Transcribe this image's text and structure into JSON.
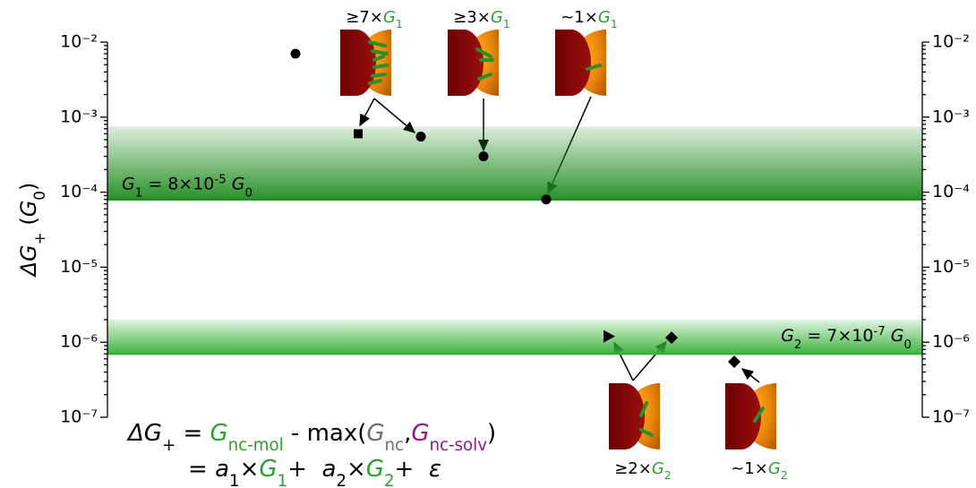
{
  "chart_data": {
    "type": "scatter",
    "ylabel": [
      {
        "text": "ΔG",
        "italic": true
      },
      {
        "text": "+",
        "shift": "sub"
      },
      {
        "text": " ("
      },
      {
        "text": "G",
        "italic": true
      },
      {
        "text": "0",
        "shift": "sub"
      },
      {
        "text": ")"
      }
    ],
    "log_y": true,
    "ylim": [
      1e-07,
      0.01
    ],
    "yticks": [
      {
        "value": 1e-07,
        "label": "10⁻⁷"
      },
      {
        "value": 1e-06,
        "label": "10⁻⁶"
      },
      {
        "value": 1e-05,
        "label": "10⁻⁵"
      },
      {
        "value": 0.0001,
        "label": "10⁻⁴"
      },
      {
        "value": 0.001,
        "label": "10⁻³"
      },
      {
        "value": 0.01,
        "label": "10⁻²"
      }
    ],
    "yticks_minor": [
      2e-07,
      3e-07,
      4e-07,
      5e-07,
      6e-07,
      7e-07,
      8e-07,
      9e-07,
      2e-06,
      3e-06,
      4e-06,
      5e-06,
      6e-06,
      7e-06,
      8e-06,
      9e-06,
      2e-05,
      3e-05,
      4e-05,
      5e-05,
      6e-05,
      7e-05,
      8e-05,
      9e-05,
      0.0002,
      0.0003,
      0.0004,
      0.0005,
      0.0006,
      0.0007,
      0.0008,
      0.0009,
      0.002,
      0.003,
      0.004,
      0.005,
      0.006,
      0.007,
      0.008,
      0.009
    ],
    "mirror_y_axis": true,
    "categories": [
      null,
      null,
      null,
      null,
      null,
      null,
      null,
      null
    ],
    "values": [
      0.007,
      0.0006,
      0.00055,
      0.0003,
      8e-05,
      1.2e-06,
      1.15e-06,
      5.5e-07
    ],
    "markers": [
      "circle",
      "square",
      "circle",
      "circle",
      "circle",
      "triangle-right",
      "diamond",
      "diamond"
    ],
    "color": "#000000",
    "bands": [
      {
        "lower": 8e-05,
        "upper": 0.00075,
        "color": "#1e8c1e",
        "label_side": "left",
        "label": [
          {
            "text": "G",
            "italic": true
          },
          {
            "text": "1",
            "shift": "sub"
          },
          {
            "text": " = 8×10"
          },
          {
            "text": "-5",
            "shift": "sup"
          },
          {
            "text": " "
          },
          {
            "text": "G",
            "italic": true
          },
          {
            "text": "0",
            "shift": "sub"
          }
        ]
      },
      {
        "lower": 7e-07,
        "upper": 2e-06,
        "color": "#35b035",
        "label_side": "right",
        "label": [
          {
            "text": "G",
            "italic": true
          },
          {
            "text": "2",
            "shift": "sub"
          },
          {
            "text": " = 7×10"
          },
          {
            "text": "-7",
            "shift": "sup"
          },
          {
            "text": " "
          },
          {
            "text": "G",
            "italic": true
          },
          {
            "text": "0",
            "shift": "sub"
          }
        ]
      }
    ],
    "annotations": [
      [
        {
          "text": "≥7×"
        },
        {
          "text": "G",
          "italic": true,
          "color": "#2ca02c"
        },
        {
          "text": "1",
          "shift": "sub",
          "color": "#2ca02c"
        }
      ],
      [
        {
          "text": "≥3×"
        },
        {
          "text": "G",
          "italic": true,
          "color": "#2ca02c"
        },
        {
          "text": "1",
          "shift": "sub",
          "color": "#2ca02c"
        }
      ],
      [
        {
          "text": "~1×"
        },
        {
          "text": "G",
          "italic": true,
          "color": "#2ca02c"
        },
        {
          "text": "1",
          "shift": "sub",
          "color": "#2ca02c"
        }
      ],
      [
        {
          "text": "≥2×"
        },
        {
          "text": "G",
          "italic": true,
          "color": "#2ca02c"
        },
        {
          "text": "2",
          "shift": "sub",
          "color": "#2ca02c"
        }
      ],
      [
        {
          "text": "~1×"
        },
        {
          "text": "G",
          "italic": true,
          "color": "#2ca02c"
        },
        {
          "text": "2",
          "shift": "sub",
          "color": "#2ca02c"
        }
      ]
    ],
    "formula": [
      [
        {
          "text": "ΔG",
          "italic": true
        },
        {
          "text": "+",
          "shift": "sub"
        },
        {
          "text": " = "
        },
        {
          "text": "G",
          "italic": true,
          "color": "#2ca02c"
        },
        {
          "text": "nc-mol",
          "shift": "sub",
          "color": "#2ca02c"
        },
        {
          "text": " - max("
        },
        {
          "text": "G",
          "italic": true,
          "color": "#6e6e6e"
        },
        {
          "text": "nc",
          "shift": "sub",
          "color": "#6e6e6e"
        },
        {
          "text": ","
        },
        {
          "text": "G",
          "italic": true,
          "color": "#8b1a8b"
        },
        {
          "text": "nc-solv",
          "shift": "sub",
          "color": "#8b1a8b"
        },
        {
          "text": ")"
        }
      ],
      [
        {
          "text": "= "
        },
        {
          "text": "a",
          "italic": true
        },
        {
          "text": "1",
          "shift": "sub"
        },
        {
          "text": "×"
        },
        {
          "text": "G",
          "italic": true,
          "color": "#2ca02c"
        },
        {
          "text": "1",
          "shift": "sub",
          "color": "#2ca02c"
        },
        {
          "text": "+  "
        },
        {
          "text": "a",
          "italic": true
        },
        {
          "text": "2",
          "shift": "sub"
        },
        {
          "text": "×"
        },
        {
          "text": "G",
          "italic": true,
          "color": "#2ca02c"
        },
        {
          "text": "2",
          "shift": "sub",
          "color": "#2ca02c"
        },
        {
          "text": "+  "
        },
        {
          "text": "ε",
          "italic": true
        }
      ]
    ]
  }
}
